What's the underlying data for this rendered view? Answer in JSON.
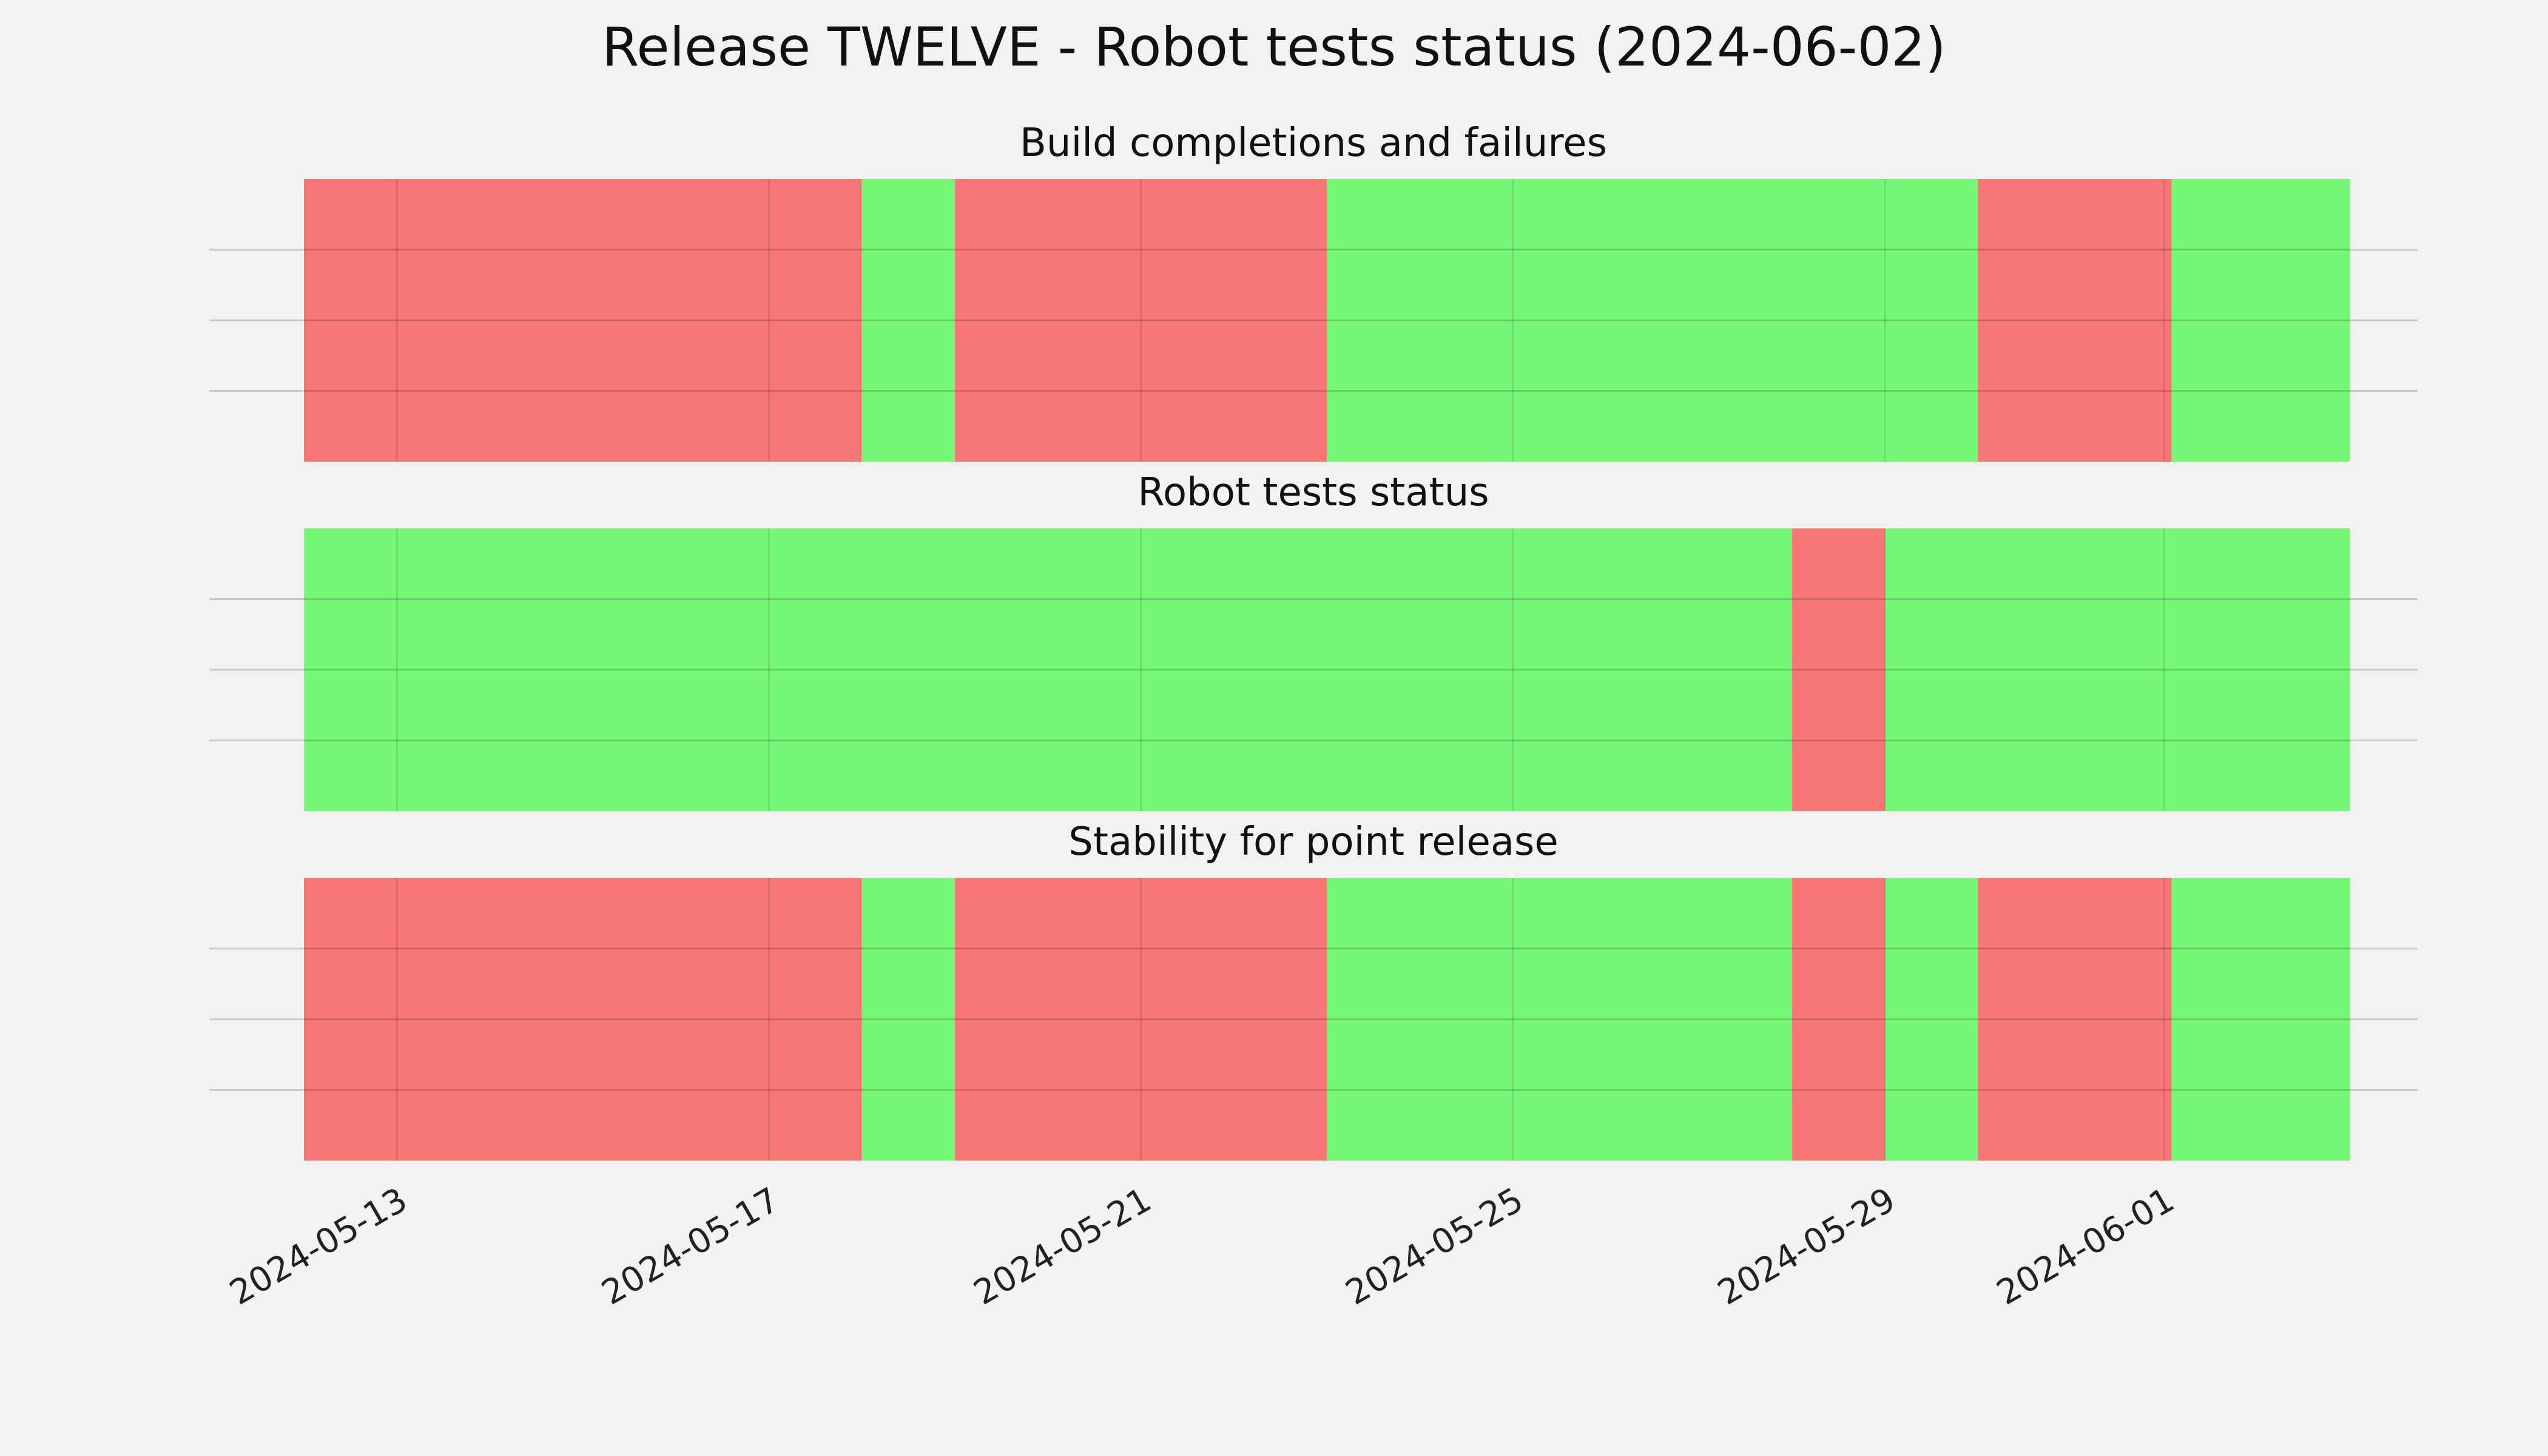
{
  "chart_data": {
    "type": "timeline",
    "title": "Release TWELVE - Robot tests status (2024-06-02)",
    "x_axis": {
      "type": "date",
      "range": [
        "2024-05-12",
        "2024-06-03"
      ],
      "tick_labels": [
        "2024-05-13",
        "2024-05-17",
        "2024-05-21",
        "2024-05-25",
        "2024-05-29",
        "2024-06-01"
      ]
    },
    "grid": true,
    "colors": {
      "pass": "#77f777",
      "fail": "#f77777"
    },
    "panels": [
      {
        "title": "Build completions and failures",
        "segments": [
          {
            "start": "2024-05-12",
            "end": "2024-05-18",
            "status": "fail"
          },
          {
            "start": "2024-05-18",
            "end": "2024-05-19",
            "status": "pass"
          },
          {
            "start": "2024-05-19",
            "end": "2024-05-23",
            "status": "fail"
          },
          {
            "start": "2024-05-23",
            "end": "2024-05-30",
            "status": "pass"
          },
          {
            "start": "2024-05-30",
            "end": "2024-06-01 02:00",
            "status": "fail"
          },
          {
            "start": "2024-06-01 02:00",
            "end": "2024-06-03",
            "status": "pass"
          }
        ]
      },
      {
        "title": "Robot tests status",
        "segments": [
          {
            "start": "2024-05-12",
            "end": "2024-05-28",
            "status": "pass"
          },
          {
            "start": "2024-05-28",
            "end": "2024-05-29",
            "status": "fail"
          },
          {
            "start": "2024-05-29",
            "end": "2024-06-03",
            "status": "pass"
          }
        ]
      },
      {
        "title": "Stability for point release",
        "segments": [
          {
            "start": "2024-05-12",
            "end": "2024-05-18",
            "status": "fail"
          },
          {
            "start": "2024-05-18",
            "end": "2024-05-19",
            "status": "pass"
          },
          {
            "start": "2024-05-19",
            "end": "2024-05-23",
            "status": "fail"
          },
          {
            "start": "2024-05-23",
            "end": "2024-05-28",
            "status": "pass"
          },
          {
            "start": "2024-05-28",
            "end": "2024-05-29",
            "status": "fail"
          },
          {
            "start": "2024-05-29",
            "end": "2024-05-30",
            "status": "pass"
          },
          {
            "start": "2024-05-30",
            "end": "2024-06-01 02:00",
            "status": "fail"
          },
          {
            "start": "2024-06-01 02:00",
            "end": "2024-06-03",
            "status": "pass"
          }
        ]
      }
    ]
  }
}
